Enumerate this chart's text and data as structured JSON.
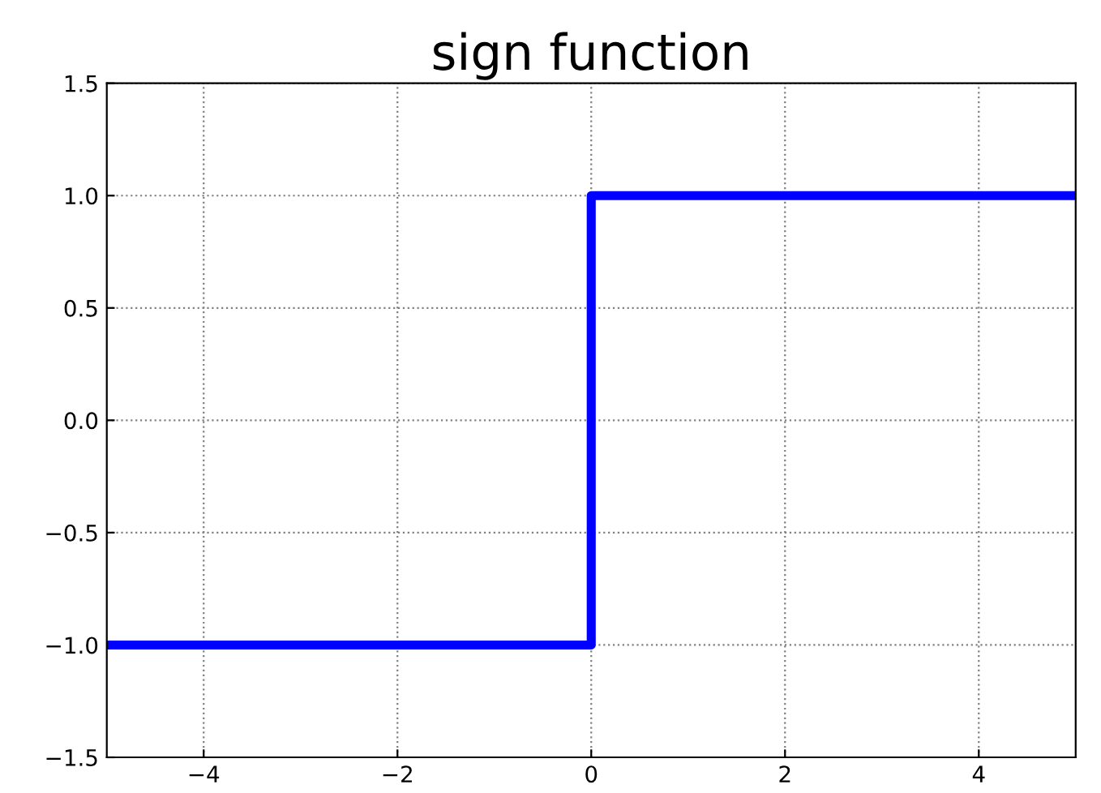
{
  "chart_data": {
    "type": "step",
    "title": "sign function",
    "x": [
      -5,
      0,
      5
    ],
    "series": [
      {
        "color": "#0000ff",
        "values": [
          -1,
          1,
          1
        ]
      }
    ],
    "xlim": [
      -5,
      5
    ],
    "ylim": [
      -1.5,
      1.5
    ],
    "xticks": [
      {
        "value": -4,
        "label": "−4"
      },
      {
        "value": -2,
        "label": "−2"
      },
      {
        "value": 0,
        "label": "0"
      },
      {
        "value": 2,
        "label": "2"
      },
      {
        "value": 4,
        "label": "4"
      }
    ],
    "yticks": [
      {
        "value": -1.5,
        "label": "−1.5"
      },
      {
        "value": -1,
        "label": "−1.0"
      },
      {
        "value": -0.5,
        "label": "−0.5"
      },
      {
        "value": 0,
        "label": "0.0"
      },
      {
        "value": 0.5,
        "label": "0.5"
      },
      {
        "value": 1,
        "label": "1.0"
      },
      {
        "value": 1.5,
        "label": "1.5"
      }
    ],
    "grid": true,
    "line_style": "solid"
  }
}
